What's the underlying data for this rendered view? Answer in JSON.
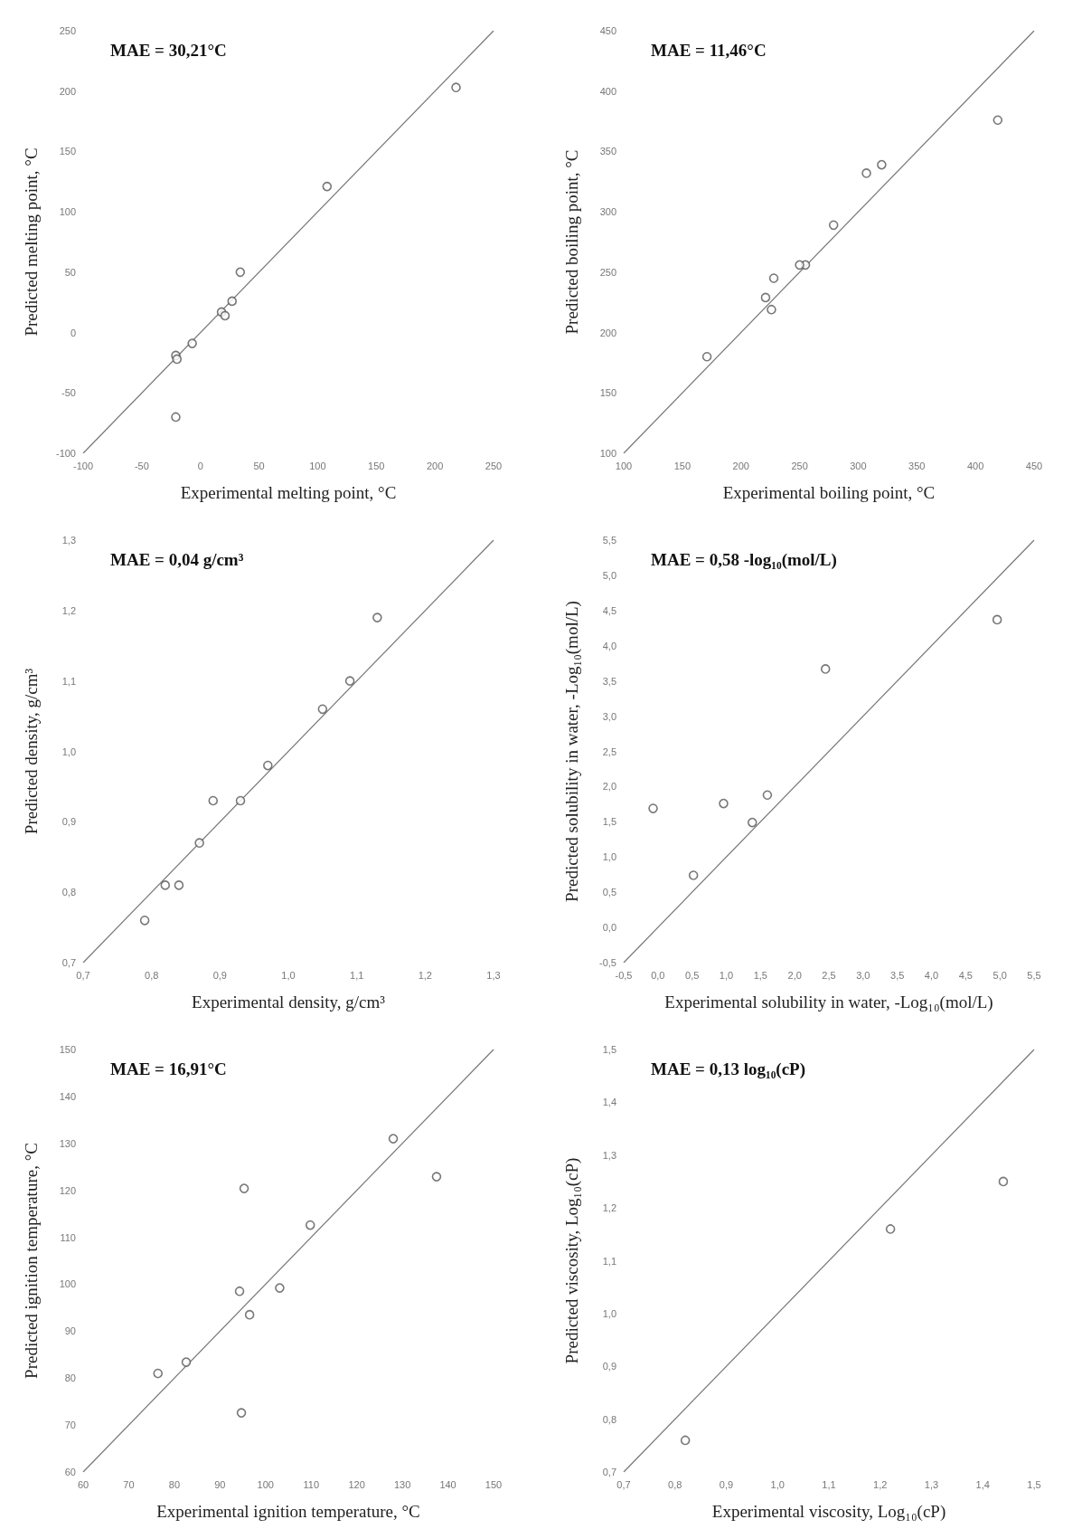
{
  "chart_data": [
    {
      "type": "scatter",
      "xlabel": "Experimental melting point, °C",
      "ylabel": "Predicted melting point, °C",
      "annotations": [
        "MAE = 30,21°C"
      ],
      "marker": "circle",
      "grid": false,
      "xlim": [
        -100,
        250
      ],
      "ylim": [
        -100,
        250
      ],
      "xticks": [
        -100,
        -50,
        0,
        50,
        100,
        150,
        200,
        250
      ],
      "yticks": [
        -100,
        -50,
        0,
        50,
        100,
        150,
        200,
        250
      ],
      "series": [
        {
          "type": "line",
          "color": "#777777",
          "marker": "none",
          "line_style": "solid",
          "x": [
            -100,
            250
          ],
          "values": [
            -100,
            250
          ]
        },
        {
          "type": "scatter",
          "color": "#555555",
          "x": [
            218,
            108,
            34,
            27,
            18,
            21,
            -7,
            -21,
            -20,
            -21
          ],
          "values": [
            203,
            121,
            50,
            26,
            17,
            14,
            -9,
            -19,
            -22,
            -70
          ]
        }
      ]
    },
    {
      "type": "scatter",
      "xlabel": "Experimental boiling point, °C",
      "ylabel": "Predicted boiling point, °C",
      "annotations": [
        "MAE = 11,46°C"
      ],
      "marker": "circle",
      "grid": false,
      "xlim": [
        100,
        450
      ],
      "ylim": [
        100,
        450
      ],
      "xticks": [
        100,
        150,
        200,
        250,
        300,
        350,
        400,
        450
      ],
      "yticks": [
        100,
        150,
        200,
        250,
        300,
        350,
        400,
        450
      ],
      "series": [
        {
          "type": "line",
          "color": "#777777",
          "marker": "none",
          "line_style": "solid",
          "x": [
            100,
            450
          ],
          "values": [
            100,
            450
          ]
        },
        {
          "type": "scatter",
          "color": "#555555",
          "x": [
            419,
            320,
            307,
            279,
            255,
            250,
            228,
            221,
            226,
            171
          ],
          "values": [
            376,
            339,
            332,
            289,
            256,
            256,
            245,
            229,
            219,
            180
          ]
        }
      ]
    },
    {
      "type": "scatter",
      "xlabel": "Experimental density, g/cm³",
      "ylabel": "Predicted density, g/cm³",
      "annotations": [
        "MAE = 0,04 g/cm³"
      ],
      "marker": "circle",
      "grid": false,
      "xlim": [
        0.7,
        1.3
      ],
      "ylim": [
        0.7,
        1.3
      ],
      "xticks": [
        {
          "value": 0.7,
          "label": "0,7"
        },
        {
          "value": 0.8,
          "label": "0,8"
        },
        {
          "value": 0.9,
          "label": "0,9"
        },
        {
          "value": 1.0,
          "label": "1,0"
        },
        {
          "value": 1.1,
          "label": "1,1"
        },
        {
          "value": 1.2,
          "label": "1,2"
        },
        {
          "value": 1.3,
          "label": "1,3"
        }
      ],
      "yticks": [
        {
          "value": 0.7,
          "label": "0,7"
        },
        {
          "value": 0.8,
          "label": "0,8"
        },
        {
          "value": 0.9,
          "label": "0,9"
        },
        {
          "value": 1.0,
          "label": "1,0"
        },
        {
          "value": 1.1,
          "label": "1,1"
        },
        {
          "value": 1.2,
          "label": "1,2"
        },
        {
          "value": 1.3,
          "label": "1,3"
        }
      ],
      "series": [
        {
          "type": "line",
          "color": "#777777",
          "marker": "none",
          "line_style": "solid",
          "x": [
            0.7,
            1.3
          ],
          "values": [
            0.7,
            1.3
          ]
        },
        {
          "type": "scatter",
          "color": "#555555",
          "x": [
            1.13,
            1.09,
            1.05,
            0.97,
            0.93,
            0.89,
            0.87,
            0.84,
            0.82,
            0.79
          ],
          "values": [
            1.19,
            1.1,
            1.06,
            0.98,
            0.93,
            0.93,
            0.87,
            0.81,
            0.81,
            0.76
          ]
        }
      ]
    },
    {
      "type": "scatter",
      "xlabel": "Experimental solubility in water, -Log₁₀(mol/L)",
      "ylabel": "Predicted solubility in water, -Log₁₀(mol/L)",
      "annotations": [
        "MAE = 0,58 -log₁₀(mol/L)"
      ],
      "marker": "circle",
      "grid": false,
      "xlim": [
        -0.5,
        5.5
      ],
      "ylim": [
        -0.5,
        5.5
      ],
      "xticks": [
        {
          "value": -0.5,
          "label": "-0,5"
        },
        {
          "value": 0,
          "label": "0,0"
        },
        {
          "value": 0.5,
          "label": "0,5"
        },
        {
          "value": 1,
          "label": "1,0"
        },
        {
          "value": 1.5,
          "label": "1,5"
        },
        {
          "value": 2,
          "label": "2,0"
        },
        {
          "value": 2.5,
          "label": "2,5"
        },
        {
          "value": 3,
          "label": "3,0"
        },
        {
          "value": 3.5,
          "label": "3,5"
        },
        {
          "value": 4,
          "label": "4,0"
        },
        {
          "value": 4.5,
          "label": "4,5"
        },
        {
          "value": 5,
          "label": "5,0"
        },
        {
          "value": 5.5,
          "label": "5,5"
        }
      ],
      "yticks": [
        {
          "value": -0.5,
          "label": "-0,5"
        },
        {
          "value": 0,
          "label": "0,0"
        },
        {
          "value": 0.5,
          "label": "0,5"
        },
        {
          "value": 1,
          "label": "1,0"
        },
        {
          "value": 1.5,
          "label": "1,5"
        },
        {
          "value": 2,
          "label": "2,0"
        },
        {
          "value": 2.5,
          "label": "2,5"
        },
        {
          "value": 3,
          "label": "3,0"
        },
        {
          "value": 3.5,
          "label": "3,5"
        },
        {
          "value": 4,
          "label": "4,0"
        },
        {
          "value": 4.5,
          "label": "4,5"
        },
        {
          "value": 5,
          "label": "5,0"
        },
        {
          "value": 5.5,
          "label": "5,5"
        }
      ],
      "series": [
        {
          "type": "line",
          "color": "#777777",
          "marker": "none",
          "line_style": "solid",
          "x": [
            -0.5,
            5.5
          ],
          "values": [
            -0.5,
            5.5
          ]
        },
        {
          "type": "scatter",
          "color": "#555555",
          "x": [
            4.96,
            2.45,
            1.6,
            0.96,
            1.38,
            0.52,
            -0.07
          ],
          "values": [
            4.37,
            3.67,
            1.88,
            1.76,
            1.49,
            0.74,
            1.69
          ]
        }
      ]
    },
    {
      "type": "scatter",
      "xlabel": "Experimental ignition temperature, °C",
      "ylabel": "Predicted ignition temperature, °C",
      "annotations": [
        "MAE = 16,91°C"
      ],
      "marker": "circle",
      "grid": false,
      "xlim": [
        60,
        150
      ],
      "ylim": [
        60,
        150
      ],
      "xticks": [
        60,
        70,
        80,
        90,
        100,
        110,
        120,
        130,
        140,
        150
      ],
      "yticks": [
        60,
        70,
        80,
        90,
        100,
        110,
        120,
        130,
        140,
        150
      ],
      "series": [
        {
          "type": "line",
          "color": "#777777",
          "marker": "none",
          "line_style": "solid",
          "x": [
            60,
            150
          ],
          "values": [
            60,
            150
          ]
        },
        {
          "type": "scatter",
          "color": "#555555",
          "x": [
            128,
            137.5,
            95.3,
            109.8,
            94.3,
            103.1,
            96.5,
            82.6,
            76.4,
            94.7
          ],
          "values": [
            131,
            122.9,
            120.4,
            112.6,
            98.5,
            99.2,
            93.5,
            83.4,
            81,
            72.6
          ]
        }
      ]
    },
    {
      "type": "scatter",
      "xlabel": "Experimental viscosity, Log₁₀(cP)",
      "ylabel": "Predicted viscosity, Log₁₀(cP)",
      "annotations": [
        "MAE = 0,13 log₁₀(cP)"
      ],
      "marker": "circle",
      "grid": false,
      "xlim": [
        0.7,
        1.5
      ],
      "ylim": [
        0.7,
        1.5
      ],
      "xticks": [
        {
          "value": 0.7,
          "label": "0,7"
        },
        {
          "value": 0.8,
          "label": "0,8"
        },
        {
          "value": 0.9,
          "label": "0,9"
        },
        {
          "value": 1.0,
          "label": "1,0"
        },
        {
          "value": 1.1,
          "label": "1,1"
        },
        {
          "value": 1.2,
          "label": "1,2"
        },
        {
          "value": 1.3,
          "label": "1,3"
        },
        {
          "value": 1.4,
          "label": "1,4"
        },
        {
          "value": 1.5,
          "label": "1,5"
        }
      ],
      "yticks": [
        {
          "value": 0.7,
          "label": "0,7"
        },
        {
          "value": 0.8,
          "label": "0,8"
        },
        {
          "value": 0.9,
          "label": "0,9"
        },
        {
          "value": 1.0,
          "label": "1,0"
        },
        {
          "value": 1.1,
          "label": "1,1"
        },
        {
          "value": 1.2,
          "label": "1,2"
        },
        {
          "value": 1.3,
          "label": "1,3"
        },
        {
          "value": 1.4,
          "label": "1,4"
        },
        {
          "value": 1.5,
          "label": "1,5"
        }
      ],
      "series": [
        {
          "type": "line",
          "color": "#777777",
          "marker": "none",
          "line_style": "solid",
          "x": [
            0.7,
            1.5
          ],
          "values": [
            0.7,
            1.5
          ]
        },
        {
          "type": "scatter",
          "color": "#555555",
          "x": [
            0.82,
            1.22,
            1.44
          ],
          "values": [
            0.76,
            1.16,
            1.25
          ]
        }
      ]
    }
  ]
}
